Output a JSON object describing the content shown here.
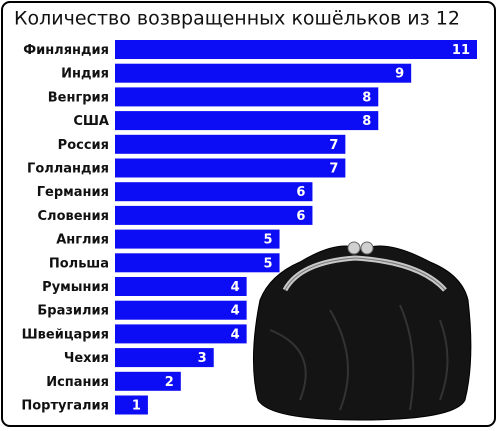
{
  "chart_data": {
    "type": "bar",
    "orientation": "horizontal",
    "title": "Количество возвращенных кошёльков из 12",
    "categories": [
      "Финляндия",
      "Индия",
      "Венгрия",
      "США",
      "Россия",
      "Голландия",
      "Германия",
      "Словения",
      "Англия",
      "Польша",
      "Румыния",
      "Бразилия",
      "Швейцария",
      "Чехия",
      "Испания",
      "Португалия"
    ],
    "values": [
      11,
      9,
      8,
      8,
      7,
      7,
      6,
      6,
      5,
      5,
      4,
      4,
      4,
      3,
      2,
      1
    ],
    "color": "#0c0cf5"
  }
}
